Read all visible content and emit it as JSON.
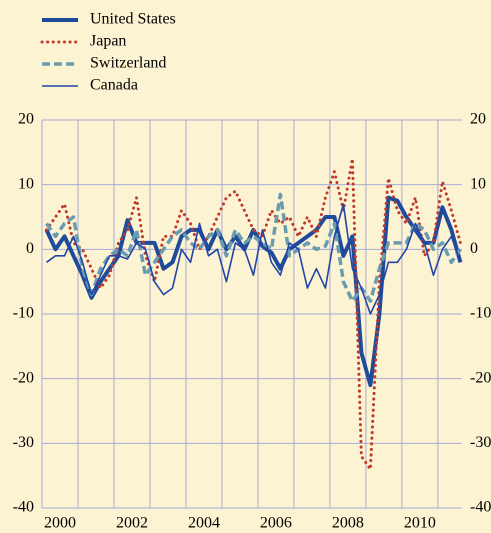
{
  "chart_data": {
    "type": "line",
    "x": [
      2000.125,
      2000.375,
      2000.625,
      2000.875,
      2001.125,
      2001.375,
      2001.625,
      2001.875,
      2002.125,
      2002.375,
      2002.625,
      2002.875,
      2003.125,
      2003.375,
      2003.625,
      2003.875,
      2004.125,
      2004.375,
      2004.625,
      2004.875,
      2005.125,
      2005.375,
      2005.625,
      2005.875,
      2006.125,
      2006.375,
      2006.625,
      2006.875,
      2007.125,
      2007.375,
      2007.625,
      2007.875,
      2008.125,
      2008.375,
      2008.625,
      2008.875,
      2009.125,
      2009.375,
      2009.625,
      2009.875,
      2010.125,
      2010.375,
      2010.625,
      2010.875,
      2011.125,
      2011.375,
      2011.625
    ],
    "series": [
      {
        "name": "United States",
        "color": "#1f4b9b",
        "style": "thick",
        "values": [
          3,
          0,
          2,
          -1,
          -4,
          -7.5,
          -5,
          -3,
          -1,
          4.5,
          1,
          1,
          1,
          -3,
          -2,
          2,
          3,
          3,
          0,
          3,
          0,
          2,
          0,
          3,
          0.5,
          -0.5,
          -3,
          0,
          1,
          2,
          3,
          5,
          5,
          -1,
          2,
          -16,
          -21,
          -10,
          8,
          7.5,
          5,
          3,
          1,
          1,
          6.5,
          3,
          -2
        ]
      },
      {
        "name": "Japan",
        "color": "#c0392b",
        "style": "dotted",
        "values": [
          3,
          5,
          7,
          1,
          0,
          -3,
          -6,
          -4,
          1,
          3,
          8,
          -1,
          -5,
          2,
          2,
          6,
          4,
          0,
          2,
          5,
          8,
          9,
          6,
          3,
          2,
          6,
          4,
          5,
          2,
          5,
          2,
          8,
          12,
          6,
          14,
          -32,
          -34,
          -5,
          11,
          6,
          4,
          8,
          -1,
          1,
          10.5,
          6,
          1
        ]
      },
      {
        "name": "Switzerland",
        "color": "#6a9cb0",
        "style": "dashed",
        "values": [
          4,
          2,
          4,
          5,
          -3,
          -7,
          -3,
          -1,
          0,
          -1,
          3,
          -4,
          -2,
          0,
          2,
          3,
          1,
          0,
          2,
          3,
          -1,
          3,
          1,
          2,
          1,
          0,
          8.5,
          -1,
          0,
          1,
          0,
          0.5,
          4,
          -5,
          -8,
          -6,
          -8,
          -3,
          1,
          1,
          1,
          4,
          3,
          0,
          1,
          -2,
          0
        ]
      },
      {
        "name": "Canada",
        "color": "#2246a8",
        "style": "thin",
        "values": [
          -2,
          -1,
          -1,
          2,
          -2,
          -7,
          -4,
          -1,
          -1,
          -1.5,
          1,
          0,
          -5,
          -7,
          -6,
          0,
          -2,
          4,
          -1,
          0,
          -5,
          1,
          0,
          -4,
          3,
          -2,
          -4,
          1,
          0,
          -6,
          -3,
          -6,
          2,
          7,
          -3,
          -6,
          -10,
          -7,
          -2,
          -2,
          0,
          4,
          1,
          -4,
          0,
          2,
          -2
        ]
      }
    ],
    "xlim": [
      2000,
      2011.67
    ],
    "xgrid": [
      2000,
      2001,
      2002,
      2003,
      2004,
      2005,
      2006,
      2007,
      2008,
      2009,
      2010,
      2011
    ],
    "xticks": [
      {
        "value": 2000.5,
        "label": "2000"
      },
      {
        "value": 2002.5,
        "label": "2002"
      },
      {
        "value": 2004.5,
        "label": "2004"
      },
      {
        "value": 2006.5,
        "label": "2006"
      },
      {
        "value": 2008.5,
        "label": "2008"
      },
      {
        "value": 2010.5,
        "label": "2010"
      }
    ],
    "ylim": [
      -40,
      20
    ],
    "yticks": [
      -40,
      -30,
      -20,
      -10,
      0,
      10,
      20
    ],
    "grid": true
  }
}
